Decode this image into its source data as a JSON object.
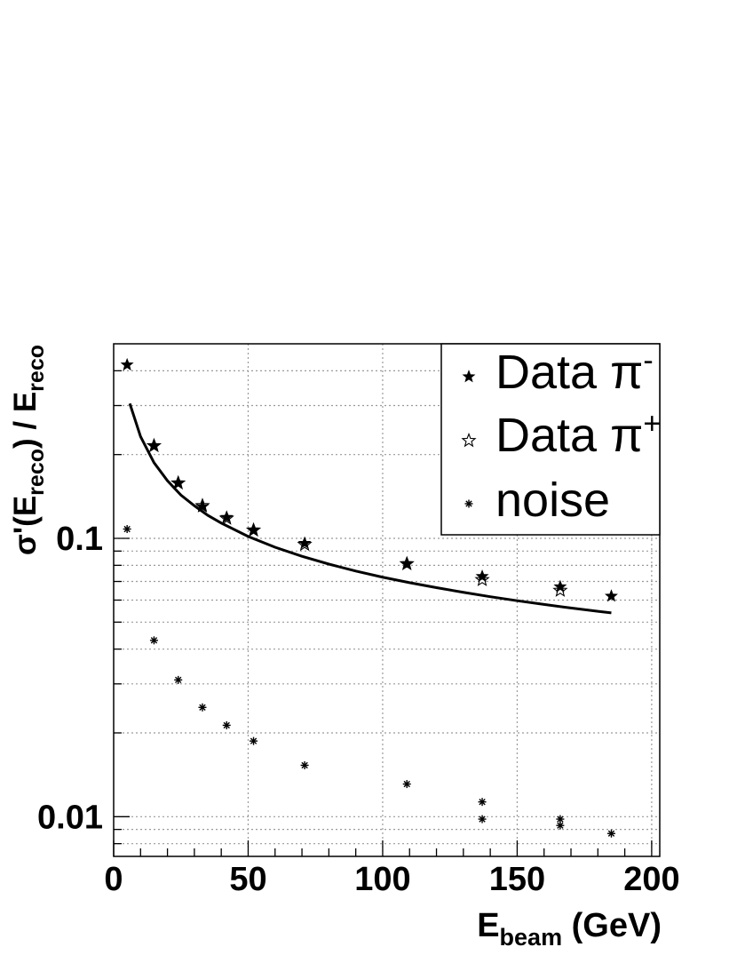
{
  "chart_data": {
    "type": "scatter",
    "xlabel": {
      "main": "E",
      "sub": "beam",
      "rest": " (GeV)"
    },
    "ylabel": {
      "p1": "σ'(E",
      "sub1": "reco",
      "p2": ") / E",
      "sub2": "reco"
    },
    "xlim": [
      0,
      203
    ],
    "ylim": [
      0.0072,
      0.5
    ],
    "yscale": "log",
    "grid": true,
    "legend_position": "top-right",
    "x_ticks": [
      0,
      50,
      100,
      150,
      200
    ],
    "x_tick_labels": [
      "0",
      "50",
      "100",
      "150",
      "200"
    ],
    "y_ticks": [
      0.01,
      0.1
    ],
    "y_tick_labels": [
      "0.01",
      "0.1"
    ],
    "series": [
      {
        "name": "Data π⁻",
        "marker": "filled-star",
        "x": [
          5,
          15,
          24,
          33,
          42,
          52,
          71,
          109,
          137,
          166,
          185
        ],
        "y": [
          0.42,
          0.215,
          0.158,
          0.13,
          0.119,
          0.107,
          0.096,
          0.081,
          0.073,
          0.067,
          0.062
        ]
      },
      {
        "name": "Data π⁺",
        "marker": "open-star",
        "x": [
          15,
          24,
          33,
          42,
          52,
          71,
          109,
          137,
          166
        ],
        "y": [
          0.215,
          0.158,
          0.131,
          0.118,
          0.107,
          0.095,
          0.081,
          0.071,
          0.065
        ]
      },
      {
        "name": "noise",
        "marker": "asterisk",
        "x": [
          5,
          15,
          24,
          33,
          42,
          52,
          71,
          109,
          137,
          137,
          166,
          166,
          185
        ],
        "y": [
          0.108,
          0.043,
          0.031,
          0.0247,
          0.0213,
          0.0187,
          0.0153,
          0.0131,
          0.0113,
          0.0098,
          0.0098,
          0.0093,
          0.0087
        ]
      },
      {
        "name": "fit",
        "type": "line",
        "x": [
          6,
          10,
          15,
          20,
          25,
          30,
          35,
          40,
          50,
          60,
          70,
          80,
          90,
          100,
          110,
          120,
          130,
          140,
          150,
          160,
          170,
          180,
          185
        ],
        "y": [
          0.305,
          0.232,
          0.187,
          0.161,
          0.143,
          0.131,
          0.121,
          0.1135,
          0.1016,
          0.0929,
          0.0862,
          0.0808,
          0.0763,
          0.0725,
          0.0693,
          0.0665,
          0.064,
          0.0617,
          0.0597,
          0.0579,
          0.0562,
          0.0547,
          0.054
        ]
      }
    ],
    "legend": [
      {
        "label": "Data π",
        "sup": "-",
        "marker": "filled-star"
      },
      {
        "label": "Data π",
        "sup": "+",
        "marker": "open-star"
      },
      {
        "label": "noise",
        "sup": "",
        "marker": "asterisk"
      }
    ]
  }
}
